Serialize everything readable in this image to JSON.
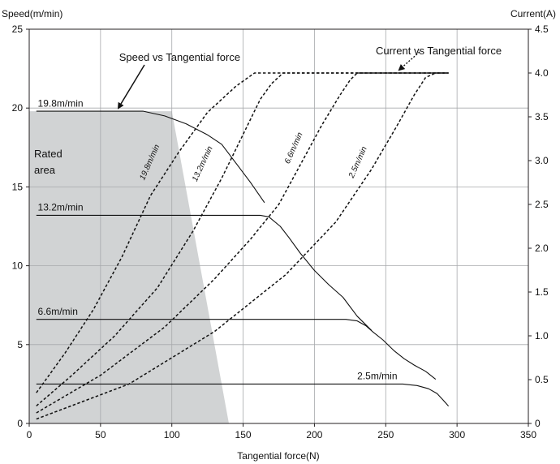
{
  "chart_data": {
    "type": "line",
    "xlabel": "Tangential force(N)",
    "ylabel_left": "Speed(m/min)",
    "ylabel_right": "Current(A)",
    "xlim": [
      0,
      350
    ],
    "ylim_left": [
      0,
      25
    ],
    "ylim_right": [
      0,
      4.5
    ],
    "grid": true,
    "x_ticks": [
      0,
      50,
      100,
      150,
      200,
      250,
      300,
      350
    ],
    "y_left_ticks": [
      0,
      5,
      10,
      15,
      20,
      25
    ],
    "y_right_ticks": [
      "0",
      "0.5",
      "1.0",
      "1.5",
      "2.0",
      "2.5",
      "3.0",
      "3.5",
      "4.0",
      "4.5"
    ],
    "rated_area": {
      "label_line1": "Rated",
      "label_line2": "area",
      "polygon": [
        [
          0,
          0
        ],
        [
          0,
          19.8
        ],
        [
          100,
          19.8
        ],
        [
          140,
          0
        ]
      ],
      "color": "#d1d3d4"
    },
    "speed_series": [
      {
        "name": "19.8m/min",
        "style": "solid",
        "axis": "left",
        "points": [
          [
            5,
            19.8
          ],
          [
            80,
            19.8
          ],
          [
            95,
            19.5
          ],
          [
            110,
            19.0
          ],
          [
            125,
            18.3
          ],
          [
            135,
            17.7
          ],
          [
            145,
            16.5
          ],
          [
            155,
            15.3
          ],
          [
            165,
            14.0
          ]
        ]
      },
      {
        "name": "13.2m/min",
        "style": "solid",
        "axis": "left",
        "points": [
          [
            5,
            13.2
          ],
          [
            162,
            13.2
          ],
          [
            168,
            13.1
          ],
          [
            176,
            12.5
          ],
          [
            182,
            11.8
          ],
          [
            190,
            10.8
          ],
          [
            200,
            9.7
          ],
          [
            210,
            8.8
          ],
          [
            220,
            8.0
          ],
          [
            230,
            6.8
          ],
          [
            240,
            5.9
          ]
        ]
      },
      {
        "name": "6.6m/min",
        "style": "solid",
        "axis": "left",
        "points": [
          [
            5,
            6.6
          ],
          [
            222,
            6.6
          ],
          [
            230,
            6.5
          ],
          [
            236,
            6.2
          ],
          [
            241,
            5.8
          ],
          [
            248,
            5.3
          ],
          [
            256,
            4.6
          ],
          [
            263,
            4.1
          ],
          [
            270,
            3.7
          ],
          [
            278,
            3.3
          ],
          [
            285,
            2.8
          ]
        ]
      },
      {
        "name": "2.5m/min",
        "style": "solid",
        "axis": "left",
        "points": [
          [
            5,
            2.5
          ],
          [
            262,
            2.5
          ],
          [
            272,
            2.4
          ],
          [
            280,
            2.2
          ],
          [
            286,
            1.9
          ],
          [
            290,
            1.5
          ],
          [
            294,
            1.1
          ]
        ]
      }
    ],
    "current_series": [
      {
        "name": "19.8m/min",
        "style": "dashed",
        "axis": "right",
        "points": [
          [
            5,
            0.35
          ],
          [
            25,
            0.8
          ],
          [
            45,
            1.3
          ],
          [
            65,
            1.9
          ],
          [
            85,
            2.6
          ],
          [
            105,
            3.1
          ],
          [
            125,
            3.55
          ],
          [
            145,
            3.85
          ],
          [
            158,
            4.0
          ],
          [
            294,
            4.0
          ]
        ]
      },
      {
        "name": "13.2m/min",
        "style": "dashed",
        "axis": "right",
        "points": [
          [
            5,
            0.2
          ],
          [
            30,
            0.55
          ],
          [
            60,
            1.0
          ],
          [
            90,
            1.55
          ],
          [
            115,
            2.2
          ],
          [
            135,
            2.8
          ],
          [
            150,
            3.3
          ],
          [
            162,
            3.7
          ],
          [
            170,
            3.88
          ],
          [
            178,
            4.0
          ],
          [
            294,
            4.0
          ]
        ]
      },
      {
        "name": "6.6m/min",
        "style": "dashed",
        "axis": "right",
        "points": [
          [
            5,
            0.12
          ],
          [
            50,
            0.55
          ],
          [
            95,
            1.1
          ],
          [
            130,
            1.65
          ],
          [
            155,
            2.1
          ],
          [
            175,
            2.5
          ],
          [
            190,
            2.95
          ],
          [
            205,
            3.4
          ],
          [
            218,
            3.75
          ],
          [
            225,
            3.92
          ],
          [
            230,
            4.0
          ],
          [
            294,
            4.0
          ]
        ]
      },
      {
        "name": "2.5m/min",
        "style": "dashed",
        "axis": "right",
        "points": [
          [
            5,
            0.05
          ],
          [
            70,
            0.45
          ],
          [
            130,
            1.05
          ],
          [
            180,
            1.7
          ],
          [
            215,
            2.3
          ],
          [
            240,
            2.9
          ],
          [
            258,
            3.4
          ],
          [
            270,
            3.75
          ],
          [
            278,
            3.95
          ],
          [
            285,
            4.0
          ],
          [
            294,
            4.0
          ]
        ]
      }
    ],
    "inline_labels": [
      {
        "text": "19.8m/min",
        "x": 6,
        "y": 20.1
      },
      {
        "text": "13.2m/min",
        "x": 6,
        "y": 13.5
      },
      {
        "text": "6.6m/min",
        "x": 6,
        "y": 6.9
      },
      {
        "text": "2.5m/min",
        "x": 230,
        "y": 2.8
      }
    ],
    "curve_labels": [
      {
        "text": "19.8m/min",
        "x": 86,
        "y": 16.5,
        "rotation": -66
      },
      {
        "text": "13.2m/min",
        "x": 123,
        "y": 16.4,
        "rotation": -65
      },
      {
        "text": "6.6m/min",
        "x": 187,
        "y": 17.4,
        "rotation": -66
      },
      {
        "text": "2.5m/min",
        "x": 232,
        "y": 16.5,
        "rotation": -66
      }
    ],
    "annotations": [
      {
        "text": "Speed vs Tangential force",
        "x": 63,
        "y": 23.0
      },
      {
        "text": "Current vs Tangential force",
        "x": 243,
        "y": 23.4
      }
    ]
  }
}
